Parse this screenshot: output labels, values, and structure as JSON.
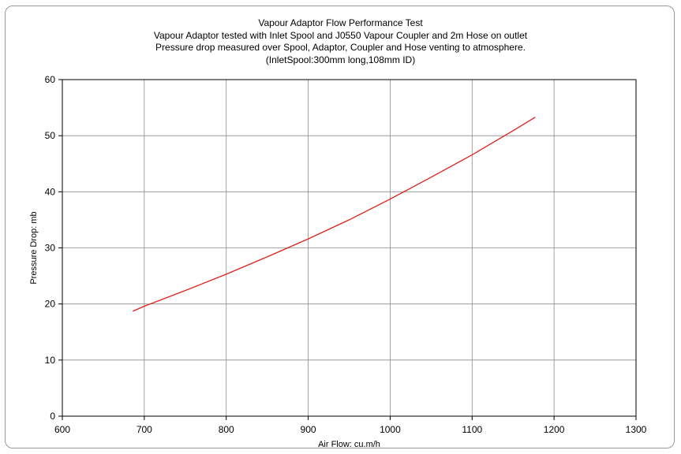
{
  "chart_data": {
    "type": "line",
    "title": "Vapour Adaptor Flow Performance Test",
    "subtitle_lines": [
      "Vapour Adaptor tested with Inlet Spool and J0550 Vapour Coupler and 2m Hose on outlet",
      "Pressure drop measured over Spool, Adaptor, Coupler and Hose venting to atmosphere.",
      "(InletSpool:300mm long,108mm ID)"
    ],
    "xlabel": "Air Flow: cu.m/h",
    "ylabel": "Pressure Drop: mb",
    "xlim": [
      600,
      1300
    ],
    "ylim": [
      0,
      60
    ],
    "xticks": [
      600,
      700,
      800,
      900,
      1000,
      1100,
      1200,
      1300
    ],
    "yticks": [
      0,
      10,
      20,
      30,
      40,
      50,
      60
    ],
    "grid": true,
    "series": [
      {
        "color": "#e0201b",
        "x": [
          686,
          700,
          750,
          800,
          850,
          900,
          950,
          1000,
          1050,
          1100,
          1150,
          1177
        ],
        "y": [
          18.7,
          19.6,
          22.4,
          25.3,
          28.4,
          31.6,
          35.0,
          38.7,
          42.6,
          46.6,
          50.9,
          53.3
        ]
      }
    ]
  }
}
